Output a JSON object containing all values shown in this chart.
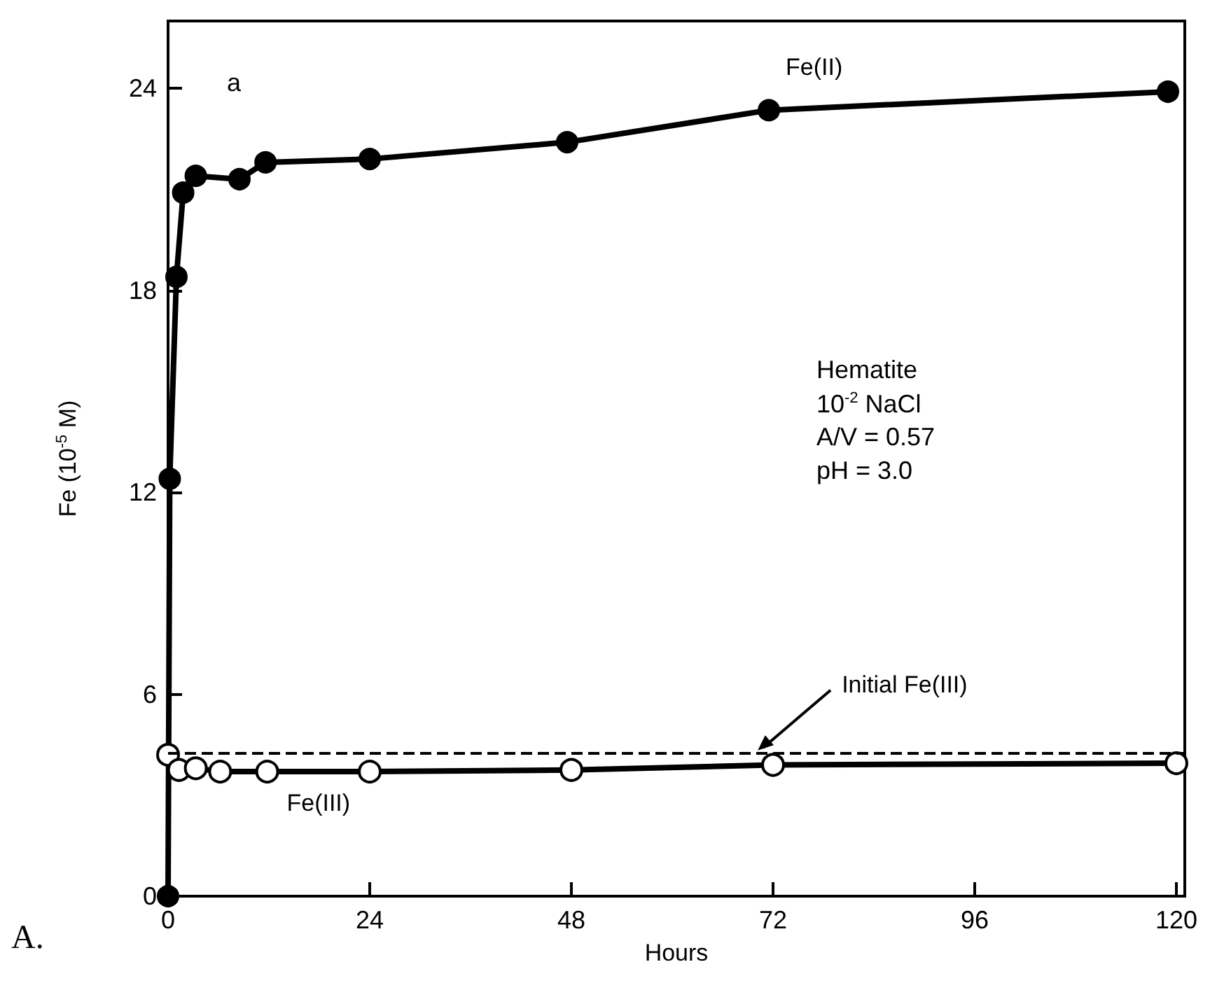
{
  "chart_data": {
    "type": "line",
    "xlabel": "Hours",
    "ylabel": "Fe (10$^{-5}$ M)",
    "xlim": [
      0,
      121
    ],
    "ylim": [
      0,
      26
    ],
    "xticks": [
      0,
      24,
      48,
      72,
      96,
      120
    ],
    "yticks": [
      0,
      6,
      12,
      18,
      24
    ],
    "grid": false,
    "legend": false,
    "marker": "circle",
    "line_style": "solid",
    "series": [
      {
        "name": "Fe(II)",
        "color": "#000000",
        "x": [
          0,
          0.2,
          1,
          1.8,
          3.3,
          8.5,
          11.6,
          24,
          47.5,
          71.5,
          119
        ],
        "values": [
          0,
          12.4,
          18.4,
          20.9,
          21.4,
          21.3,
          21.8,
          21.9,
          22.4,
          23.35,
          23.9
        ]
      },
      {
        "name": "Fe(III)",
        "color": "#000000",
        "x": [
          0,
          1.3,
          3.3,
          6.2,
          11.8,
          24,
          48,
          72,
          120
        ],
        "values": [
          4.2,
          3.75,
          3.8,
          3.7,
          3.7,
          3.7,
          3.75,
          3.9,
          3.95
        ]
      }
    ],
    "ref_lines": [
      {
        "axis": "y",
        "value": 4.25,
        "label": "Initial Fe(III)",
        "line_style": "dashed",
        "color": "#000000"
      }
    ],
    "annotations": [
      "a",
      "Hematite\n10$^{-2}$ NaCl\nA/V = 0.57\npH = 3.0",
      "A."
    ]
  }
}
